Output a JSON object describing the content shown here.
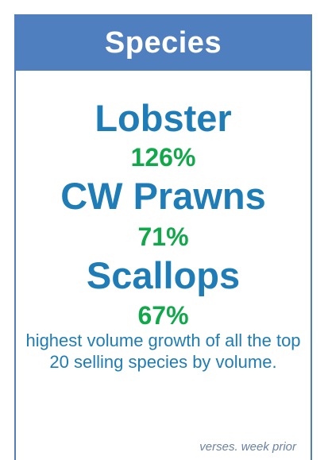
{
  "header": {
    "title": "Species"
  },
  "items": [
    {
      "name": "Lobster",
      "growth": "126%"
    },
    {
      "name": "CW Prawns",
      "growth": "71%"
    },
    {
      "name": "Scallops",
      "growth": "67%"
    }
  ],
  "description": "highest volume growth of all the top 20 selling species by volume.",
  "note": "verses. week prior",
  "colors": {
    "header_bg": "#4f7fbf",
    "species_text": "#1e7cb6",
    "growth_text": "#10a84a",
    "note_text": "#6a83a6"
  }
}
